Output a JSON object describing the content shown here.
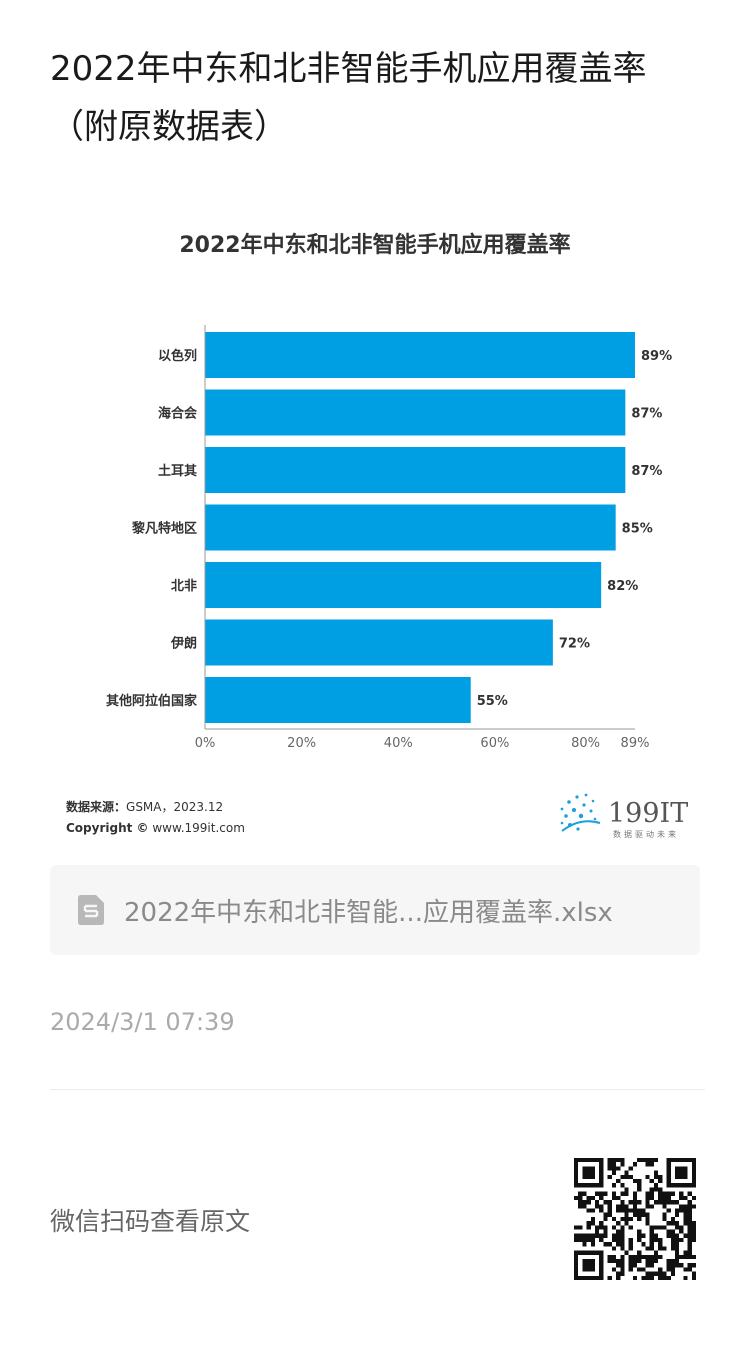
{
  "article": {
    "title": "2022年中东和北非智能手机应用覆盖率（附原数据表）"
  },
  "chart_data": {
    "type": "bar",
    "orientation": "horizontal",
    "title": "2022年中东和北非智能手机应用覆盖率",
    "categories": [
      "以色列",
      "海合会",
      "土耳其",
      "黎凡特地区",
      "北非",
      "伊朗",
      "其他阿拉伯国家"
    ],
    "values": [
      89,
      87,
      87,
      85,
      82,
      72,
      55
    ],
    "value_labels": [
      "89%",
      "87%",
      "87%",
      "85%",
      "82%",
      "72%",
      "55%"
    ],
    "x_ticks": [
      0,
      20,
      40,
      60,
      80,
      89
    ],
    "x_tick_labels": [
      "0%",
      "20%",
      "40%",
      "60%",
      "80%",
      "89%"
    ],
    "xlim": [
      0,
      89
    ],
    "bar_color": "#009fe3",
    "grid": false,
    "legend": "none",
    "source_label": "数据来源：",
    "source_text": "GSMA，2023.12",
    "copyright_label": "Copyright ©",
    "copyright_text": " www.199it.com",
    "logo_text": "199IT",
    "logo_tagline": "数据驱动未来"
  },
  "attachment": {
    "file_name": "2022年中东和北非智能...应用覆盖率.xlsx",
    "icon": "spreadsheet-file-icon"
  },
  "meta": {
    "timestamp": "2024/3/1 07:39"
  },
  "footer": {
    "qr_hint": "微信扫码查看原文",
    "qr_icon": "qr-code-icon"
  }
}
